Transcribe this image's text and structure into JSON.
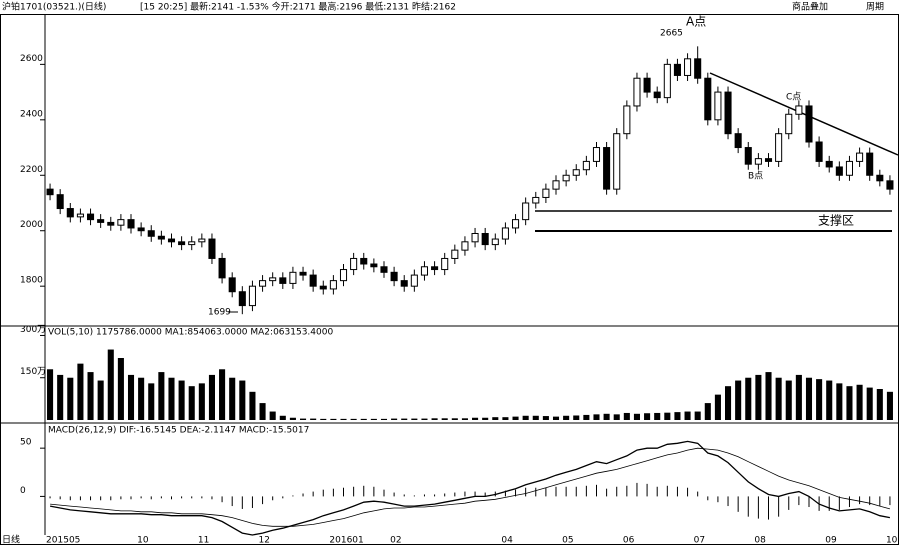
{
  "chart_data": {
    "type": "candlestick",
    "header": "沪铂1701(03521.)(日线)",
    "quote": "[15 20:25] 最新:2141 -1.53% 今开:2171 最高:2196 最低:2131 昨结:2162",
    "menu": [
      "商品叠加",
      "周期"
    ],
    "annotations": {
      "a_point": "A点",
      "high": "2665",
      "b_point": "B点",
      "c_point": "C点",
      "support": "支撑区",
      "low": "1699"
    },
    "period_label": "日线",
    "categories": [
      "201505",
      null,
      null,
      null,
      null,
      null,
      null,
      null,
      null,
      "10",
      null,
      null,
      null,
      null,
      null,
      "11",
      null,
      null,
      null,
      null,
      null,
      "12",
      null,
      null,
      null,
      null,
      null,
      null,
      "201601",
      null,
      null,
      null,
      null,
      null,
      "02",
      null,
      null,
      null,
      null,
      null,
      null,
      null,
      null,
      null,
      null,
      "04",
      null,
      null,
      null,
      null,
      null,
      "05",
      null,
      null,
      null,
      null,
      null,
      "06",
      null,
      null,
      null,
      null,
      null,
      null,
      "07",
      null,
      null,
      null,
      null,
      null,
      "08",
      null,
      null,
      null,
      null,
      null,
      null,
      "09",
      null,
      null,
      null,
      null,
      null,
      "10"
    ],
    "ohlc": [
      [
        2150,
        2170,
        2110,
        2130
      ],
      [
        2130,
        2150,
        2060,
        2080
      ],
      [
        2080,
        2100,
        2030,
        2050
      ],
      [
        2050,
        2080,
        2030,
        2060
      ],
      [
        2060,
        2080,
        2020,
        2040
      ],
      [
        2040,
        2060,
        2010,
        2030
      ],
      [
        2030,
        2050,
        2000,
        2020
      ],
      [
        2020,
        2060,
        2000,
        2040
      ],
      [
        2040,
        2060,
        1990,
        2010
      ],
      [
        2010,
        2030,
        1980,
        2000
      ],
      [
        2000,
        2020,
        1960,
        1980
      ],
      [
        1980,
        2000,
        1950,
        1970
      ],
      [
        1970,
        1990,
        1940,
        1960
      ],
      [
        1960,
        1980,
        1930,
        1950
      ],
      [
        1950,
        1980,
        1930,
        1960
      ],
      [
        1960,
        1990,
        1940,
        1970
      ],
      [
        1970,
        1990,
        1880,
        1900
      ],
      [
        1900,
        1920,
        1810,
        1830
      ],
      [
        1830,
        1850,
        1760,
        1780
      ],
      [
        1780,
        1800,
        1699,
        1730
      ],
      [
        1730,
        1820,
        1710,
        1800
      ],
      [
        1800,
        1840,
        1780,
        1820
      ],
      [
        1820,
        1850,
        1800,
        1830
      ],
      [
        1830,
        1850,
        1790,
        1810
      ],
      [
        1810,
        1870,
        1790,
        1850
      ],
      [
        1850,
        1870,
        1820,
        1840
      ],
      [
        1840,
        1860,
        1780,
        1800
      ],
      [
        1800,
        1820,
        1770,
        1790
      ],
      [
        1790,
        1840,
        1770,
        1820
      ],
      [
        1820,
        1880,
        1800,
        1860
      ],
      [
        1860,
        1920,
        1840,
        1900
      ],
      [
        1900,
        1920,
        1860,
        1880
      ],
      [
        1880,
        1900,
        1850,
        1870
      ],
      [
        1870,
        1890,
        1830,
        1850
      ],
      [
        1850,
        1870,
        1800,
        1820
      ],
      [
        1820,
        1840,
        1780,
        1800
      ],
      [
        1800,
        1860,
        1780,
        1840
      ],
      [
        1840,
        1890,
        1820,
        1870
      ],
      [
        1870,
        1890,
        1840,
        1860
      ],
      [
        1860,
        1920,
        1840,
        1900
      ],
      [
        1900,
        1950,
        1880,
        1930
      ],
      [
        1930,
        1980,
        1910,
        1960
      ],
      [
        1960,
        2010,
        1940,
        1990
      ],
      [
        1990,
        2010,
        1930,
        1950
      ],
      [
        1950,
        1990,
        1930,
        1970
      ],
      [
        1970,
        2030,
        1950,
        2010
      ],
      [
        2010,
        2060,
        1990,
        2040
      ],
      [
        2040,
        2120,
        2020,
        2100
      ],
      [
        2100,
        2140,
        2080,
        2120
      ],
      [
        2120,
        2170,
        2100,
        2150
      ],
      [
        2150,
        2200,
        2130,
        2180
      ],
      [
        2180,
        2220,
        2160,
        2200
      ],
      [
        2200,
        2240,
        2180,
        2220
      ],
      [
        2220,
        2270,
        2200,
        2250
      ],
      [
        2250,
        2320,
        2230,
        2300
      ],
      [
        2300,
        2320,
        2130,
        2150
      ],
      [
        2150,
        2370,
        2130,
        2350
      ],
      [
        2350,
        2470,
        2330,
        2450
      ],
      [
        2450,
        2570,
        2430,
        2550
      ],
      [
        2550,
        2570,
        2480,
        2500
      ],
      [
        2500,
        2520,
        2460,
        2480
      ],
      [
        2480,
        2620,
        2460,
        2600
      ],
      [
        2600,
        2620,
        2540,
        2560
      ],
      [
        2560,
        2640,
        2540,
        2620
      ],
      [
        2620,
        2665,
        2530,
        2550
      ],
      [
        2550,
        2570,
        2380,
        2400
      ],
      [
        2400,
        2520,
        2380,
        2500
      ],
      [
        2500,
        2520,
        2330,
        2350
      ],
      [
        2350,
        2370,
        2280,
        2300
      ],
      [
        2300,
        2320,
        2220,
        2240
      ],
      [
        2240,
        2280,
        2220,
        2260
      ],
      [
        2260,
        2280,
        2230,
        2250
      ],
      [
        2250,
        2370,
        2230,
        2350
      ],
      [
        2350,
        2440,
        2330,
        2420
      ],
      [
        2420,
        2470,
        2400,
        2450
      ],
      [
        2450,
        2470,
        2300,
        2320
      ],
      [
        2320,
        2340,
        2230,
        2250
      ],
      [
        2250,
        2270,
        2210,
        2230
      ],
      [
        2230,
        2250,
        2180,
        2200
      ],
      [
        2200,
        2270,
        2180,
        2250
      ],
      [
        2250,
        2300,
        2230,
        2280
      ],
      [
        2280,
        2300,
        2180,
        2200
      ],
      [
        2200,
        2220,
        2160,
        2180
      ],
      [
        2180,
        2200,
        2130,
        2150
      ]
    ],
    "ylim": [
      1660,
      2760
    ],
    "yticks": [
      1800,
      2000,
      2200,
      2400,
      2600
    ],
    "volume": {
      "title": "VOL(5,10) 1175786.0000 MA1:854063.0000 MA2:063153.4000",
      "values": [
        180,
        160,
        150,
        200,
        170,
        140,
        250,
        220,
        160,
        150,
        130,
        170,
        150,
        140,
        120,
        130,
        160,
        180,
        150,
        140,
        100,
        60,
        30,
        15,
        8,
        5,
        5,
        4,
        4,
        4,
        4,
        4,
        4,
        4,
        5,
        5,
        5,
        5,
        6,
        6,
        6,
        6,
        8,
        8,
        10,
        10,
        12,
        15,
        15,
        14,
        12,
        15,
        16,
        18,
        20,
        22,
        20,
        25,
        22,
        24,
        25,
        26,
        28,
        30,
        30,
        60,
        90,
        120,
        140,
        150,
        160,
        170,
        150,
        140,
        160,
        150,
        145,
        140,
        130,
        120,
        125,
        115,
        110,
        100
      ],
      "ylim": [
        0,
        330
      ],
      "yticks": [
        {
          "value": 150,
          "label": "150万"
        },
        {
          "value": 300,
          "label": "300万"
        }
      ]
    },
    "macd": {
      "title": "MACD(26,12,9) DIF:-16.5145 DEA:-2.1147 MACD:-15.5017",
      "dif": [
        -10,
        -12,
        -14,
        -15,
        -16,
        -17,
        -18,
        -18,
        -18,
        -18,
        -19,
        -19,
        -20,
        -20,
        -20,
        -20,
        -22,
        -26,
        -32,
        -38,
        -40,
        -38,
        -35,
        -33,
        -30,
        -27,
        -24,
        -20,
        -17,
        -14,
        -10,
        -6,
        -5,
        -6,
        -8,
        -10,
        -10,
        -9,
        -8,
        -6,
        -4,
        -2,
        0,
        0,
        2,
        5,
        8,
        12,
        15,
        18,
        22,
        25,
        28,
        32,
        36,
        34,
        38,
        42,
        48,
        50,
        50,
        54,
        55,
        57,
        55,
        45,
        42,
        35,
        25,
        15,
        8,
        2,
        0,
        3,
        5,
        0,
        -8,
        -12,
        -15,
        -14,
        -13,
        -16,
        -20,
        -22
      ],
      "dea": [
        -8,
        -9,
        -10,
        -11,
        -12,
        -13,
        -14,
        -15,
        -15,
        -16,
        -16,
        -17,
        -17,
        -18,
        -18,
        -18,
        -19,
        -20,
        -22,
        -25,
        -28,
        -30,
        -31,
        -31,
        -31,
        -30,
        -29,
        -27,
        -25,
        -23,
        -20,
        -17,
        -15,
        -13,
        -12,
        -12,
        -11,
        -11,
        -10,
        -9,
        -8,
        -7,
        -5,
        -4,
        -3,
        -1,
        1,
        3,
        6,
        9,
        12,
        15,
        18,
        21,
        24,
        26,
        28,
        31,
        34,
        37,
        40,
        43,
        45,
        48,
        50,
        49,
        48,
        45,
        41,
        36,
        31,
        26,
        21,
        17,
        14,
        11,
        7,
        3,
        -1,
        -3,
        -5,
        -7,
        -10,
        -13
      ],
      "values": [
        -2,
        -3,
        -4,
        -4,
        -4,
        -4,
        -4,
        -3,
        -3,
        -2,
        -3,
        -2,
        -3,
        -2,
        -2,
        -2,
        -3,
        -6,
        -10,
        -13,
        -12,
        -8,
        -4,
        -2,
        1,
        3,
        5,
        7,
        8,
        9,
        10,
        11,
        10,
        7,
        4,
        2,
        1,
        2,
        2,
        3,
        4,
        5,
        5,
        4,
        5,
        6,
        7,
        9,
        9,
        9,
        10,
        10,
        10,
        11,
        12,
        8,
        10,
        11,
        14,
        13,
        10,
        11,
        10,
        9,
        5,
        -4,
        -6,
        -10,
        -16,
        -21,
        -23,
        -24,
        -21,
        -14,
        -9,
        -11,
        -15,
        -15,
        -14,
        -11,
        -8,
        -9,
        -10,
        -9
      ],
      "ylim": [
        -40,
        74
      ],
      "yticks": [
        0,
        50
      ]
    },
    "color": "#000000"
  }
}
